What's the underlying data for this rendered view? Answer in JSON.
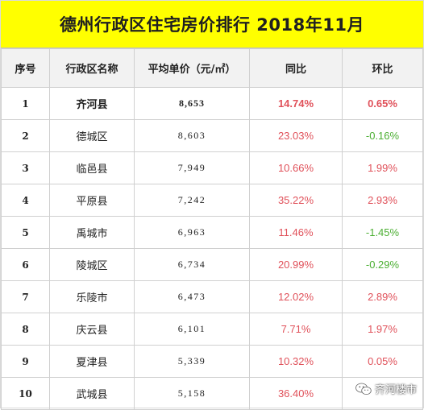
{
  "title": "德州行政区住宅房价排行  2018年11月",
  "colors": {
    "title_bg": "#ffff00",
    "header_bg": "#f2f2f2",
    "positive": "#e0515a",
    "negative": "#4caf33"
  },
  "headers": [
    "序号",
    "行政区名称",
    "平均单价（元/㎡）",
    "同比",
    "环比"
  ],
  "rows": [
    {
      "rank": "1",
      "name": "齐河县",
      "price": "8,653",
      "yoy": "14.74%",
      "mom": "0.65%",
      "yoy_dir": "up",
      "mom_dir": "up",
      "bold": true
    },
    {
      "rank": "2",
      "name": "德城区",
      "price": "8,603",
      "yoy": "23.03%",
      "mom": "-0.16%",
      "yoy_dir": "up",
      "mom_dir": "down",
      "bold": false
    },
    {
      "rank": "3",
      "name": "临邑县",
      "price": "7,949",
      "yoy": "10.66%",
      "mom": "1.99%",
      "yoy_dir": "up",
      "mom_dir": "up",
      "bold": false
    },
    {
      "rank": "4",
      "name": "平原县",
      "price": "7,242",
      "yoy": "35.22%",
      "mom": "2.93%",
      "yoy_dir": "up",
      "mom_dir": "up",
      "bold": false
    },
    {
      "rank": "5",
      "name": "禹城市",
      "price": "6,963",
      "yoy": "11.46%",
      "mom": "-1.45%",
      "yoy_dir": "up",
      "mom_dir": "down",
      "bold": false
    },
    {
      "rank": "6",
      "name": "陵城区",
      "price": "6,734",
      "yoy": "20.99%",
      "mom": "-0.29%",
      "yoy_dir": "up",
      "mom_dir": "down",
      "bold": false
    },
    {
      "rank": "7",
      "name": "乐陵市",
      "price": "6,473",
      "yoy": "12.02%",
      "mom": "2.89%",
      "yoy_dir": "up",
      "mom_dir": "up",
      "bold": false
    },
    {
      "rank": "8",
      "name": "庆云县",
      "price": "6,101",
      "yoy": "7.71%",
      "mom": "1.97%",
      "yoy_dir": "up",
      "mom_dir": "up",
      "bold": false
    },
    {
      "rank": "9",
      "name": "夏津县",
      "price": "5,339",
      "yoy": "10.32%",
      "mom": "0.05%",
      "yoy_dir": "up",
      "mom_dir": "up",
      "bold": false
    },
    {
      "rank": "10",
      "name": "武城县",
      "price": "5,158",
      "yoy": "36.40%",
      "mom": "",
      "yoy_dir": "up",
      "mom_dir": "up",
      "bold": false
    }
  ],
  "watermark": {
    "icon": "wechat-icon",
    "text": "齐河楼市"
  }
}
